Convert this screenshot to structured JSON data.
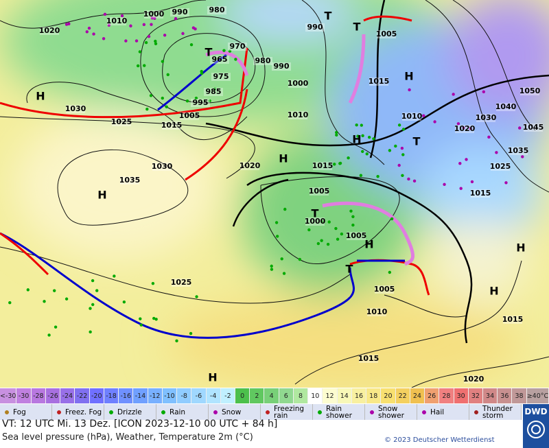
{
  "map": {
    "isobar_labels": [
      "1020",
      "1010",
      "1000",
      "990",
      "980",
      "970",
      "965",
      "975",
      "985",
      "995",
      "980",
      "990",
      "1000",
      "1005",
      "1015",
      "1025",
      "1030",
      "1030",
      "1035",
      "1020",
      "1010",
      "990",
      "1005",
      "1015",
      "1010",
      "1020",
      "1030",
      "1040",
      "1050",
      "1045",
      "1035",
      "1025",
      "1015",
      "1015",
      "1005",
      "1000",
      "1005",
      "1005",
      "1010",
      "1025",
      "1015",
      "1015",
      "1020"
    ],
    "centers": [
      "H",
      "H",
      "H",
      "H",
      "H",
      "H",
      "H",
      "H",
      "H",
      "T",
      "T",
      "T",
      "T",
      "T",
      "T"
    ]
  },
  "legend": {
    "temperature_scale": [
      "<-30",
      "-30",
      "-28",
      "-26",
      "-24",
      "-22",
      "-20",
      "-18",
      "-16",
      "-14",
      "-12",
      "-10",
      "-8",
      "-6",
      "-4",
      "-2",
      "0",
      "2",
      "4",
      "6",
      "8",
      "10",
      "12",
      "14",
      "16",
      "18",
      "20",
      "22",
      "24",
      "26",
      "28",
      "30",
      "32",
      "34",
      "36",
      "38",
      "≥40°C"
    ],
    "weather": [
      "Fog",
      "Freez. Fog",
      "Drizzle",
      "Rain",
      "Snow",
      "Freezing rain",
      "Rain shower",
      "Snow shower",
      "Hail",
      "Thunder storm"
    ]
  },
  "footer": {
    "valid_time": "VT: 12 UTC Mi.  13 Dez. [ICON 2023-12-10  00 UTC + 84 h]",
    "description": "Sea level pressure (hPa), Weather, Temperature 2m (°C)",
    "copyright": "© 2023 Deutscher Wetterdienst",
    "logo": "DWD"
  }
}
